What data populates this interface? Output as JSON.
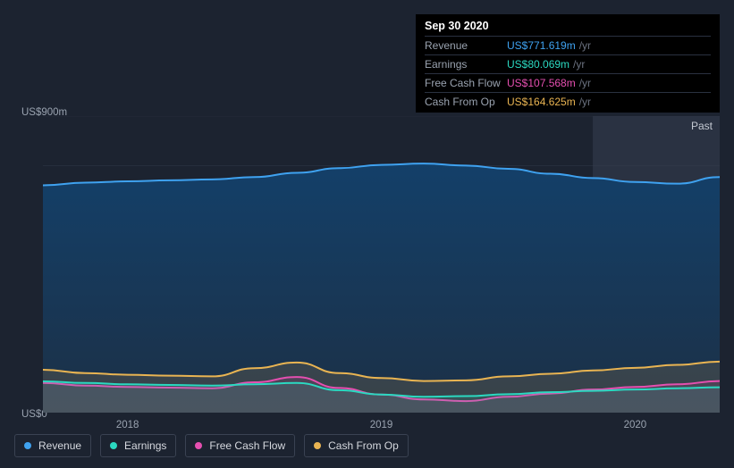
{
  "tooltip": {
    "date": "Sep 30 2020",
    "unit": "/yr",
    "rows": [
      {
        "label": "Revenue",
        "value": "US$771.619m",
        "color": "#3fa2f0"
      },
      {
        "label": "Earnings",
        "value": "US$80.069m",
        "color": "#2bd9c1"
      },
      {
        "label": "Free Cash Flow",
        "value": "US$107.568m",
        "color": "#e54fb0"
      },
      {
        "label": "Cash From Op",
        "value": "US$164.625m",
        "color": "#e9b452"
      }
    ]
  },
  "chart": {
    "type": "area",
    "background": "#1c2330",
    "grid_color": "#394150",
    "y_min": 0,
    "y_max": 900,
    "y_top_label": "US$900m",
    "y_bot_label": "US$0",
    "y_gridlines": [
      0,
      150,
      300,
      450,
      600,
      750,
      900
    ],
    "past_label": "Past",
    "past_shade_from_index": 13,
    "past_shade_color": "rgba(70,80,100,0.35)",
    "x": {
      "count": 17,
      "ticks": [
        {
          "index": 2,
          "label": "2018"
        },
        {
          "index": 8,
          "label": "2019"
        },
        {
          "index": 14,
          "label": "2020"
        }
      ]
    },
    "series": [
      {
        "name": "Revenue",
        "color": "#3fa2f0",
        "fill_from": "#13406a",
        "fill_to": "#1c3046",
        "values": [
          690,
          698,
          702,
          705,
          708,
          715,
          728,
          742,
          752,
          756,
          750,
          740,
          725,
          712,
          700,
          695,
          715,
          772
        ]
      },
      {
        "name": "Cash From Op",
        "color": "#e9b452",
        "fill": "rgba(233,180,82,0.14)",
        "values": [
          130,
          120,
          115,
          112,
          110,
          135,
          152,
          120,
          105,
          96,
          98,
          110,
          118,
          128,
          136,
          145,
          155,
          165
        ]
      },
      {
        "name": "Free Cash Flow",
        "color": "#e54fb0",
        "fill": "rgba(229,79,176,0.12)",
        "values": [
          90,
          82,
          78,
          76,
          74,
          92,
          108,
          75,
          55,
          40,
          35,
          48,
          58,
          70,
          78,
          86,
          96,
          108
        ]
      },
      {
        "name": "Earnings",
        "color": "#2bd9c1",
        "fill": "rgba(43,217,193,0.12)",
        "values": [
          95,
          90,
          86,
          84,
          82,
          86,
          90,
          68,
          55,
          48,
          50,
          56,
          62,
          66,
          70,
          74,
          77,
          80
        ]
      }
    ]
  },
  "legend": {
    "items": [
      {
        "label": "Revenue",
        "color": "#3fa2f0"
      },
      {
        "label": "Earnings",
        "color": "#2bd9c1"
      },
      {
        "label": "Free Cash Flow",
        "color": "#e54fb0"
      },
      {
        "label": "Cash From Op",
        "color": "#e9b452"
      }
    ]
  }
}
